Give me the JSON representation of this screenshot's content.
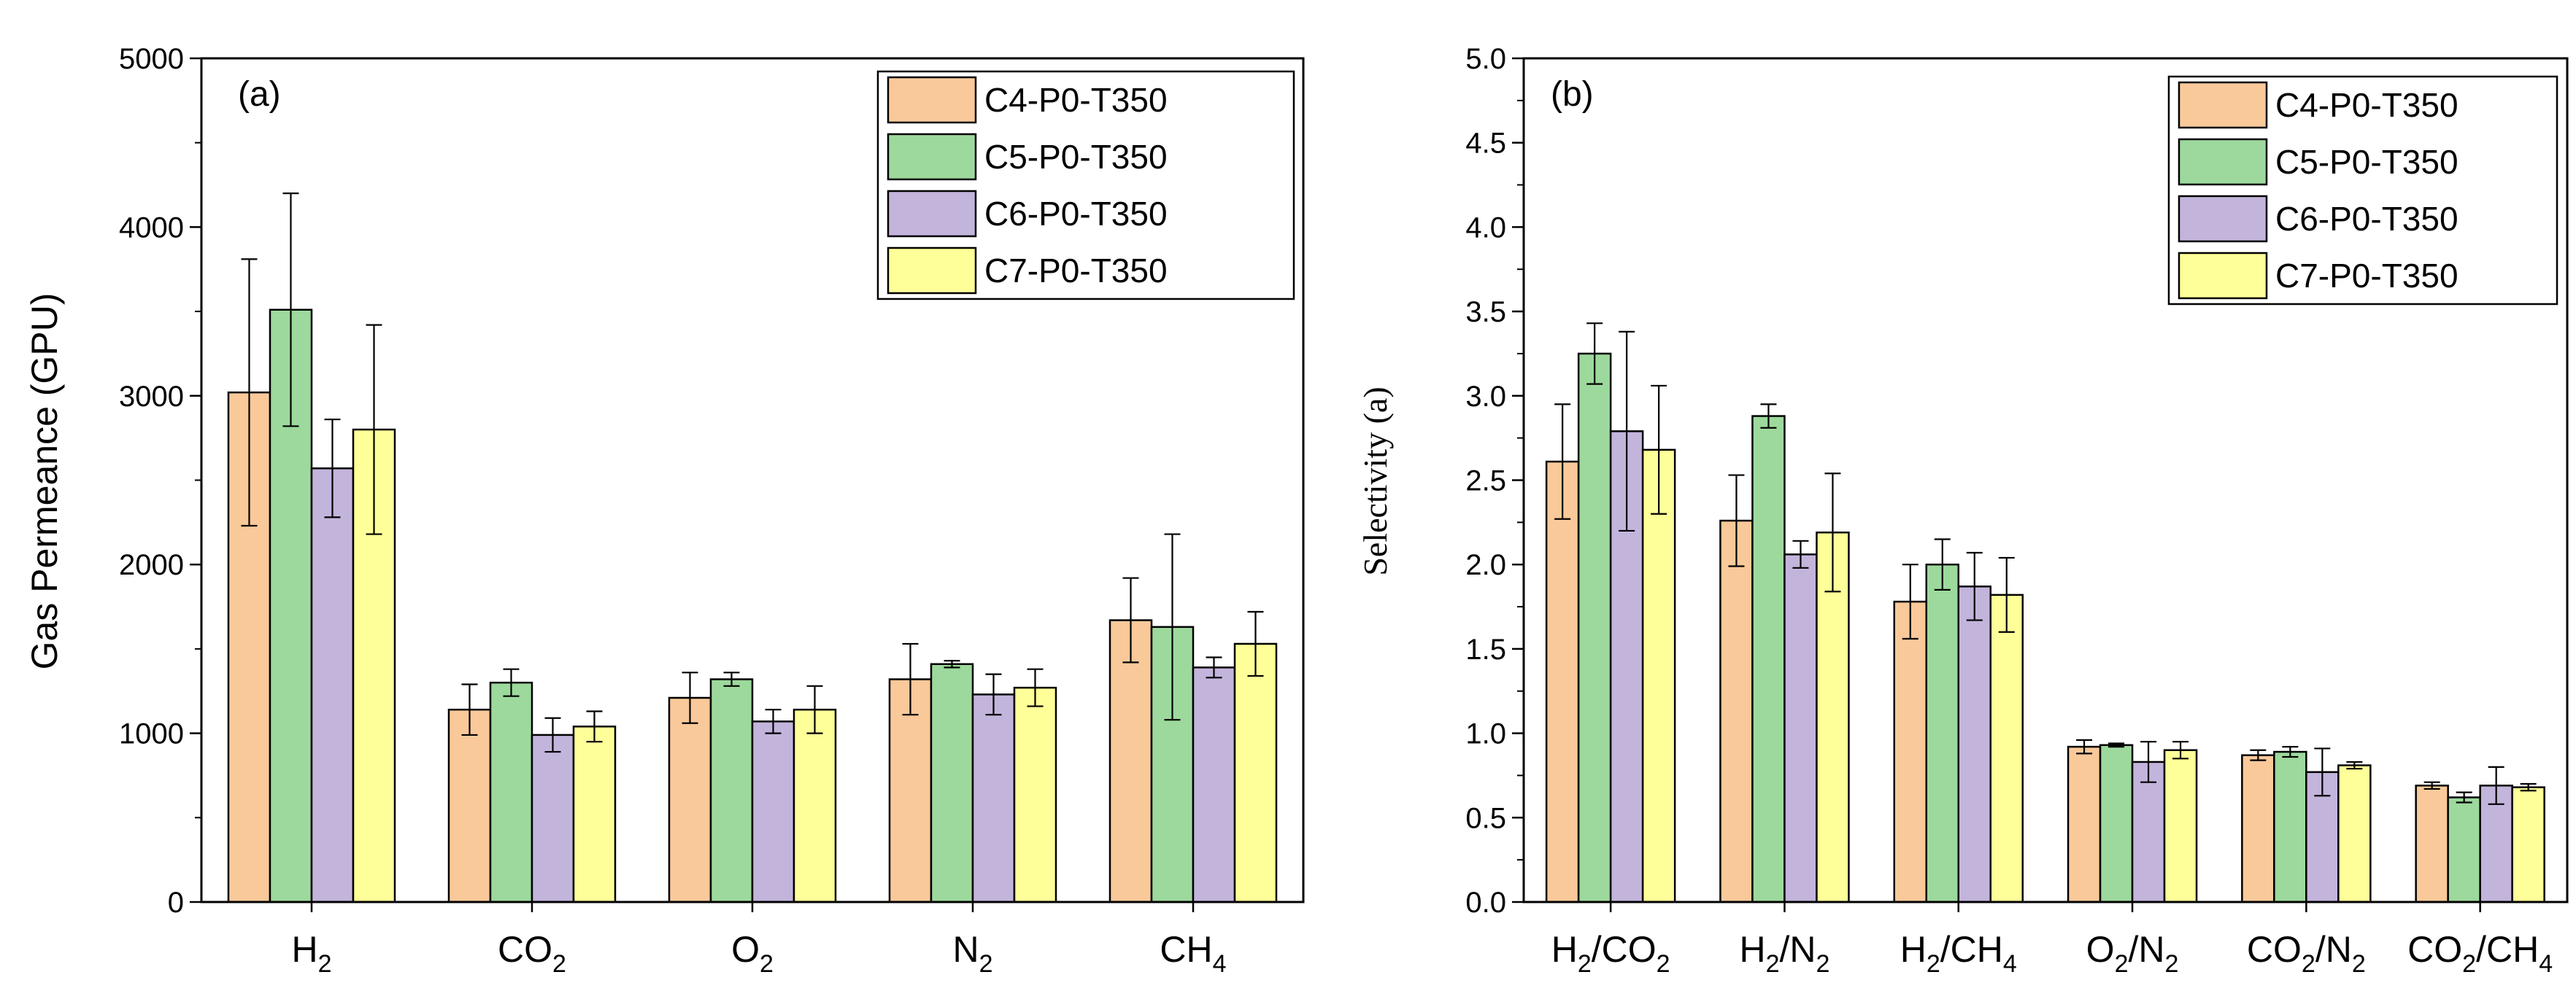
{
  "chart_data": [
    {
      "id": "a",
      "type": "bar",
      "panel_label": "(a)",
      "title": "",
      "xlabel": "",
      "ylabel": "Gas Permeance (GPU)",
      "ylim": [
        0,
        5000
      ],
      "yticks": [
        0,
        1000,
        2000,
        3000,
        4000,
        5000
      ],
      "y_minor_step": 500,
      "legend_position": "top-right",
      "categories": [
        {
          "main": "H",
          "sub": "2",
          "tail": ""
        },
        {
          "main": "CO",
          "sub": "2",
          "tail": ""
        },
        {
          "main": "O",
          "sub": "2",
          "tail": ""
        },
        {
          "main": "N",
          "sub": "2",
          "tail": ""
        },
        {
          "main": "CH",
          "sub": "4",
          "tail": ""
        }
      ],
      "series": [
        {
          "name": "C4-P0-T350",
          "color": "#f9c99a",
          "values": [
            3020,
            1140,
            1210,
            1320,
            1670
          ],
          "errors": [
            790,
            150,
            150,
            210,
            250
          ]
        },
        {
          "name": "C5-P0-T350",
          "color": "#9dd99d",
          "values": [
            3510,
            1300,
            1320,
            1410,
            1630
          ],
          "errors": [
            690,
            80,
            40,
            20,
            550
          ]
        },
        {
          "name": "C6-P0-T350",
          "color": "#c3b4dc",
          "values": [
            2570,
            990,
            1070,
            1230,
            1390
          ],
          "errors": [
            290,
            100,
            70,
            120,
            60
          ]
        },
        {
          "name": "C7-P0-T350",
          "color": "#ffff99",
          "values": [
            2800,
            1040,
            1140,
            1270,
            1530
          ],
          "errors": [
            620,
            90,
            140,
            110,
            190
          ]
        }
      ]
    },
    {
      "id": "b",
      "type": "bar",
      "panel_label": "(b)",
      "title": "",
      "xlabel": "",
      "ylabel": "Selectivity (a)",
      "ylim": [
        0,
        5
      ],
      "yticks": [
        0.0,
        0.5,
        1.0,
        1.5,
        2.0,
        2.5,
        3.0,
        3.5,
        4.0,
        4.5,
        5.0
      ],
      "y_minor_step": 0.25,
      "legend_position": "top-right",
      "categories": [
        {
          "main": "H",
          "sub": "2",
          "tail": "/CO",
          "sub2": "2"
        },
        {
          "main": "H",
          "sub": "2",
          "tail": "/N",
          "sub2": "2"
        },
        {
          "main": "H",
          "sub": "2",
          "tail": "/CH",
          "sub2": "4"
        },
        {
          "main": "O",
          "sub": "2",
          "tail": "/N",
          "sub2": "2"
        },
        {
          "main": "CO",
          "sub": "2",
          "tail": "/N",
          "sub2": "2"
        },
        {
          "main": "CO",
          "sub": "2",
          "tail": "/CH",
          "sub2": "4"
        }
      ],
      "series": [
        {
          "name": "C4-P0-T350",
          "color": "#f9c99a",
          "values": [
            2.61,
            2.26,
            1.78,
            0.92,
            0.87,
            0.69
          ],
          "errors": [
            0.34,
            0.27,
            0.22,
            0.04,
            0.03,
            0.02
          ]
        },
        {
          "name": "C5-P0-T350",
          "color": "#9dd99d",
          "values": [
            3.25,
            2.88,
            2.0,
            0.93,
            0.89,
            0.62
          ],
          "errors": [
            0.18,
            0.07,
            0.15,
            0.01,
            0.03,
            0.03
          ]
        },
        {
          "name": "C6-P0-T350",
          "color": "#c3b4dc",
          "values": [
            2.79,
            2.06,
            1.87,
            0.83,
            0.77,
            0.69
          ],
          "errors": [
            0.59,
            0.08,
            0.2,
            0.12,
            0.14,
            0.11
          ]
        },
        {
          "name": "C7-P0-T350",
          "color": "#ffff99",
          "values": [
            2.68,
            2.19,
            1.82,
            0.9,
            0.81,
            0.68
          ],
          "errors": [
            0.38,
            0.35,
            0.22,
            0.05,
            0.02,
            0.02
          ]
        }
      ]
    }
  ]
}
